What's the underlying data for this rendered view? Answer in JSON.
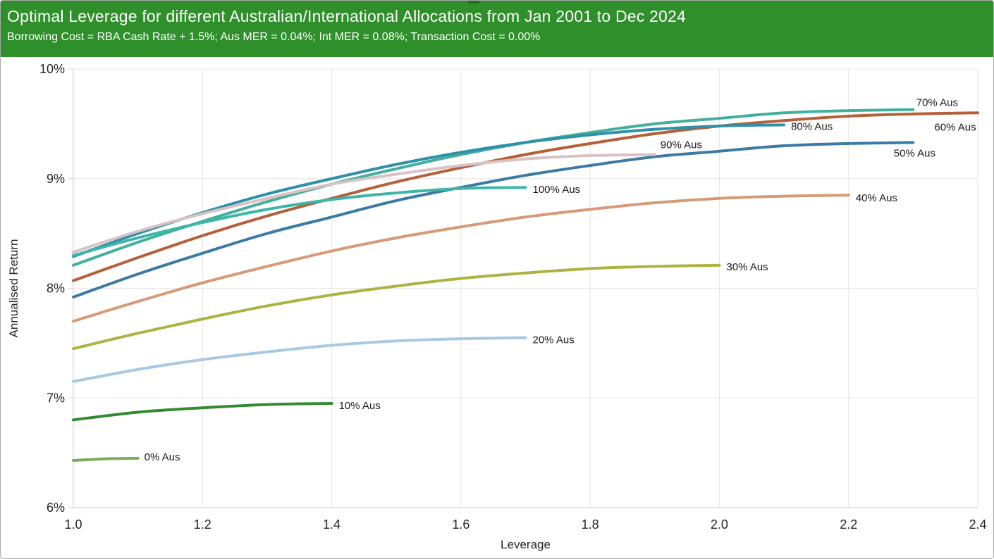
{
  "header": {
    "title": "Optimal Leverage for different Australian/International Allocations from Jan 2001 to Dec 2024",
    "subtitle": "Borrowing Cost = RBA Cash Rate + 1.5%; Aus MER = 0.04%; Int MER = 0.08%; Transaction Cost = 0.00%",
    "background_color": "#2f8f2b",
    "notch_color": "#1d6b1d",
    "text_color": "#ffffff"
  },
  "chart_data": {
    "type": "line",
    "title": "Optimal Leverage for different Australian/International Allocations from Jan 2001 to Dec 2024",
    "subtitle": "Borrowing Cost = RBA Cash Rate + 1.5%; Aus MER = 0.04%; Int MER = 0.08%; Transaction Cost = 0.00%",
    "xlabel": "Leverage",
    "ylabel": "Annualised Return",
    "xlim": [
      1.0,
      2.4
    ],
    "ylim": [
      6,
      10
    ],
    "grid": true,
    "grid_color": "#e4e4e4",
    "axis_line_color": "#d2d2d2",
    "tick_text_color": "#262626",
    "label_text_color": "#1a1a1a",
    "legend_position": "inline-end-of-line-labels",
    "x_axis": {
      "title": "Leverage",
      "ticks": [
        {
          "v": 1.0,
          "label": "1.0"
        },
        {
          "v": 1.2,
          "label": "1.2"
        },
        {
          "v": 1.4,
          "label": "1.4"
        },
        {
          "v": 1.6,
          "label": "1.6"
        },
        {
          "v": 1.8,
          "label": "1.8"
        },
        {
          "v": 2.0,
          "label": "2.0"
        },
        {
          "v": 2.2,
          "label": "2.2"
        },
        {
          "v": 2.4,
          "label": "2.4"
        }
      ]
    },
    "y_axis": {
      "title": "Annualised Return",
      "ticks": [
        {
          "v": 10,
          "label": "10%"
        },
        {
          "v": 9,
          "label": "9%"
        },
        {
          "v": 8,
          "label": "8%"
        },
        {
          "v": 7,
          "label": "7%"
        },
        {
          "v": 6,
          "label": "6%"
        }
      ]
    },
    "series": [
      {
        "name": "0% Aus",
        "color": "#7cac58",
        "optimal_leverage": 1.1,
        "optimal_return_pct": 6.45,
        "points": [
          [
            1.0,
            6.43
          ],
          [
            1.05,
            6.445
          ],
          [
            1.1,
            6.45
          ]
        ],
        "label": {
          "text": "0% Aus",
          "anchor": "start",
          "dx": 9,
          "dy": -2
        }
      },
      {
        "name": "10% Aus",
        "color": "#338a33",
        "optimal_leverage": 1.4,
        "optimal_return_pct": 6.95,
        "points": [
          [
            1.0,
            6.8
          ],
          [
            1.1,
            6.87
          ],
          [
            1.2,
            6.91
          ],
          [
            1.3,
            6.94
          ],
          [
            1.4,
            6.95
          ]
        ],
        "label": {
          "text": "10% Aus",
          "anchor": "start",
          "dx": 10,
          "dy": 3
        }
      },
      {
        "name": "20% Aus",
        "color": "#a7c9e2",
        "optimal_leverage": 1.7,
        "optimal_return_pct": 7.55,
        "points": [
          [
            1.0,
            7.15
          ],
          [
            1.1,
            7.26
          ],
          [
            1.2,
            7.35
          ],
          [
            1.3,
            7.42
          ],
          [
            1.4,
            7.48
          ],
          [
            1.5,
            7.52
          ],
          [
            1.6,
            7.54
          ],
          [
            1.7,
            7.55
          ]
        ],
        "label": {
          "text": "20% Aus",
          "anchor": "start",
          "dx": 10,
          "dy": 3
        }
      },
      {
        "name": "30% Aus",
        "color": "#adb342",
        "optimal_leverage": 2.0,
        "optimal_return_pct": 8.21,
        "points": [
          [
            1.0,
            7.45
          ],
          [
            1.1,
            7.59
          ],
          [
            1.2,
            7.72
          ],
          [
            1.3,
            7.84
          ],
          [
            1.4,
            7.94
          ],
          [
            1.5,
            8.02
          ],
          [
            1.6,
            8.09
          ],
          [
            1.7,
            8.14
          ],
          [
            1.8,
            8.18
          ],
          [
            1.9,
            8.2
          ],
          [
            2.0,
            8.21
          ]
        ],
        "label": {
          "text": "30% Aus",
          "anchor": "start",
          "dx": 10,
          "dy": 2
        }
      },
      {
        "name": "40% Aus",
        "color": "#d69a77",
        "optimal_leverage": 2.2,
        "optimal_return_pct": 8.85,
        "points": [
          [
            1.0,
            7.7
          ],
          [
            1.1,
            7.88
          ],
          [
            1.2,
            8.05
          ],
          [
            1.3,
            8.2
          ],
          [
            1.4,
            8.34
          ],
          [
            1.5,
            8.46
          ],
          [
            1.6,
            8.56
          ],
          [
            1.7,
            8.65
          ],
          [
            1.8,
            8.72
          ],
          [
            1.9,
            8.78
          ],
          [
            2.0,
            8.82
          ],
          [
            2.1,
            8.84
          ],
          [
            2.2,
            8.85
          ]
        ],
        "label": {
          "text": "40% Aus",
          "anchor": "start",
          "dx": 10,
          "dy": 4
        }
      },
      {
        "name": "50% Aus",
        "color": "#3a7aa5",
        "optimal_leverage": 2.3,
        "optimal_return_pct": 9.33,
        "points": [
          [
            1.0,
            7.92
          ],
          [
            1.1,
            8.13
          ],
          [
            1.2,
            8.32
          ],
          [
            1.3,
            8.5
          ],
          [
            1.4,
            8.65
          ],
          [
            1.5,
            8.8
          ],
          [
            1.6,
            8.92
          ],
          [
            1.7,
            9.03
          ],
          [
            1.8,
            9.12
          ],
          [
            1.9,
            9.2
          ],
          [
            2.0,
            9.25
          ],
          [
            2.1,
            9.3
          ],
          [
            2.2,
            9.32
          ],
          [
            2.3,
            9.33
          ]
        ],
        "label": {
          "text": "50% Aus",
          "anchor": "middle",
          "dx": 2,
          "dy": 15
        }
      },
      {
        "name": "60% Aus",
        "color": "#b4613a",
        "optimal_leverage": 2.4,
        "optimal_return_pct": 9.6,
        "points": [
          [
            1.0,
            8.07
          ],
          [
            1.1,
            8.28
          ],
          [
            1.2,
            8.48
          ],
          [
            1.3,
            8.66
          ],
          [
            1.4,
            8.82
          ],
          [
            1.5,
            8.97
          ],
          [
            1.6,
            9.1
          ],
          [
            1.7,
            9.22
          ],
          [
            1.8,
            9.32
          ],
          [
            1.9,
            9.41
          ],
          [
            2.0,
            9.48
          ],
          [
            2.1,
            9.53
          ],
          [
            2.2,
            9.57
          ],
          [
            2.3,
            9.59
          ],
          [
            2.4,
            9.6
          ]
        ],
        "label": {
          "text": "60% Aus",
          "anchor": "middle",
          "dx": -32,
          "dy": 20
        }
      },
      {
        "name": "70% Aus",
        "color": "#43af9d",
        "optimal_leverage": 2.3,
        "optimal_return_pct": 9.63,
        "points": [
          [
            1.0,
            8.21
          ],
          [
            1.1,
            8.42
          ],
          [
            1.2,
            8.61
          ],
          [
            1.3,
            8.79
          ],
          [
            1.4,
            8.95
          ],
          [
            1.5,
            9.09
          ],
          [
            1.6,
            9.22
          ],
          [
            1.7,
            9.33
          ],
          [
            1.8,
            9.42
          ],
          [
            1.9,
            9.5
          ],
          [
            2.0,
            9.55
          ],
          [
            2.1,
            9.6
          ],
          [
            2.2,
            9.62
          ],
          [
            2.3,
            9.63
          ]
        ],
        "label": {
          "text": "70% Aus",
          "anchor": "middle",
          "dx": 34,
          "dy": -10
        }
      },
      {
        "name": "80% Aus",
        "color": "#2f90a9",
        "optimal_leverage": 2.1,
        "optimal_return_pct": 9.49,
        "points": [
          [
            1.0,
            8.29
          ],
          [
            1.1,
            8.5
          ],
          [
            1.2,
            8.69
          ],
          [
            1.3,
            8.86
          ],
          [
            1.4,
            9.0
          ],
          [
            1.5,
            9.13
          ],
          [
            1.6,
            9.24
          ],
          [
            1.7,
            9.33
          ],
          [
            1.8,
            9.4
          ],
          [
            1.9,
            9.45
          ],
          [
            2.0,
            9.48
          ],
          [
            2.1,
            9.49
          ]
        ],
        "label": {
          "text": "80% Aus",
          "anchor": "start",
          "dx": 10,
          "dy": 2
        }
      },
      {
        "name": "90% Aus",
        "color": "#d9c2c4",
        "optimal_leverage": 1.9,
        "optimal_return_pct": 9.22,
        "points": [
          [
            1.0,
            8.33
          ],
          [
            1.1,
            8.52
          ],
          [
            1.2,
            8.68
          ],
          [
            1.3,
            8.82
          ],
          [
            1.4,
            8.95
          ],
          [
            1.5,
            9.04
          ],
          [
            1.6,
            9.12
          ],
          [
            1.7,
            9.18
          ],
          [
            1.8,
            9.21
          ],
          [
            1.9,
            9.22
          ]
        ],
        "label": {
          "text": "90% Aus",
          "anchor": "start",
          "dx": 8,
          "dy": -14
        }
      },
      {
        "name": "100% Aus",
        "color": "#3cb6a8",
        "optimal_leverage": 1.7,
        "optimal_return_pct": 8.92,
        "points": [
          [
            1.0,
            8.3
          ],
          [
            1.1,
            8.46
          ],
          [
            1.2,
            8.6
          ],
          [
            1.3,
            8.72
          ],
          [
            1.4,
            8.81
          ],
          [
            1.5,
            8.87
          ],
          [
            1.6,
            8.91
          ],
          [
            1.7,
            8.92
          ]
        ],
        "label": {
          "text": "100% Aus",
          "anchor": "start",
          "dx": 10,
          "dy": 3
        }
      }
    ]
  }
}
